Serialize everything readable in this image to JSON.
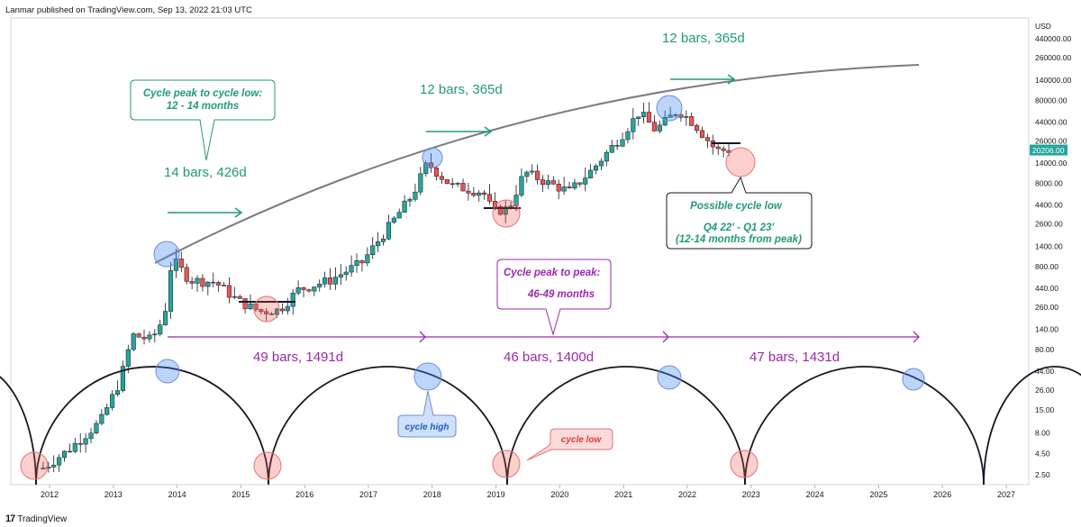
{
  "header": {
    "published": "Lanmar published on TradingView.com, Sep 13, 2022 21:03 UTC"
  },
  "footer": {
    "brand": "TradingView",
    "logo": "17"
  },
  "chart_data": {
    "type": "candlestick",
    "scale": "log",
    "currency": "USD",
    "current_price_label": "20206.00",
    "y_ticks": [
      "440000.00",
      "260000.00",
      "140000.00",
      "80000.00",
      "44000.00",
      "26000.00",
      "14000.00",
      "8000.00",
      "4400.00",
      "2600.00",
      "1400.00",
      "800.00",
      "440.00",
      "260.00",
      "140.00",
      "80.00",
      "44.00",
      "26.00",
      "15.00",
      "8.00",
      "4.50",
      "2.50"
    ],
    "x_ticks": [
      "2012",
      "2013",
      "2014",
      "2015",
      "2016",
      "2017",
      "2018",
      "2019",
      "2020",
      "2021",
      "2022",
      "2023",
      "2024",
      "2025",
      "2026",
      "2027"
    ],
    "monthly_close_anchors": [
      {
        "t": 2011.9,
        "v": 3
      },
      {
        "t": 2012.3,
        "v": 5
      },
      {
        "t": 2012.8,
        "v": 11
      },
      {
        "t": 2013.1,
        "v": 33
      },
      {
        "t": 2013.3,
        "v": 120
      },
      {
        "t": 2013.6,
        "v": 105
      },
      {
        "t": 2013.8,
        "v": 200
      },
      {
        "t": 2013.92,
        "v": 1000
      },
      {
        "t": 2014.2,
        "v": 550
      },
      {
        "t": 2014.6,
        "v": 520
      },
      {
        "t": 2014.95,
        "v": 310
      },
      {
        "t": 2015.3,
        "v": 230
      },
      {
        "t": 2015.6,
        "v": 240
      },
      {
        "t": 2015.9,
        "v": 420
      },
      {
        "t": 2016.4,
        "v": 550
      },
      {
        "t": 2016.9,
        "v": 900
      },
      {
        "t": 2017.3,
        "v": 2300
      },
      {
        "t": 2017.7,
        "v": 6000
      },
      {
        "t": 2017.92,
        "v": 14000
      },
      {
        "t": 2018.3,
        "v": 7500
      },
      {
        "t": 2018.8,
        "v": 6300
      },
      {
        "t": 2018.95,
        "v": 3700
      },
      {
        "t": 2019.2,
        "v": 4000
      },
      {
        "t": 2019.45,
        "v": 11000
      },
      {
        "t": 2019.8,
        "v": 8200
      },
      {
        "t": 2020.15,
        "v": 6400
      },
      {
        "t": 2020.5,
        "v": 11500
      },
      {
        "t": 2020.95,
        "v": 29000
      },
      {
        "t": 2021.25,
        "v": 58000
      },
      {
        "t": 2021.5,
        "v": 35000
      },
      {
        "t": 2021.85,
        "v": 61000
      },
      {
        "t": 2022.1,
        "v": 43000
      },
      {
        "t": 2022.45,
        "v": 20000
      },
      {
        "t": 2022.7,
        "v": 20206
      }
    ],
    "annotations": {
      "cycle_1_bars": "14 bars, 426d",
      "cycle_2_bars": "12 bars, 365d",
      "cycle_3_bars": "12 bars, 365d",
      "peak_to_peak_1": "49 bars, 1491d",
      "peak_to_peak_2": "46 bars, 1400d",
      "peak_to_peak_3": "47 bars, 1431d",
      "peak_to_low_box": {
        "line1": "Cycle peak to cycle low:",
        "line2": "12 - 14 months"
      },
      "peak_to_peak_box": {
        "line1": "Cycle peak to peak:",
        "line2": "46-49 months"
      },
      "possible_low_box": {
        "line1": "Possible cycle low",
        "line2": "Q4 22' - Q1 23'",
        "line3": "(12-14 months from peak)"
      },
      "cycle_high_label": "cycle high",
      "cycle_low_label": "cycle low"
    },
    "colors": {
      "up": "#26a69a",
      "down": "#ef5350",
      "green_text": "#22997a",
      "purple": "#9c27b0",
      "curve": "#787b86"
    }
  }
}
